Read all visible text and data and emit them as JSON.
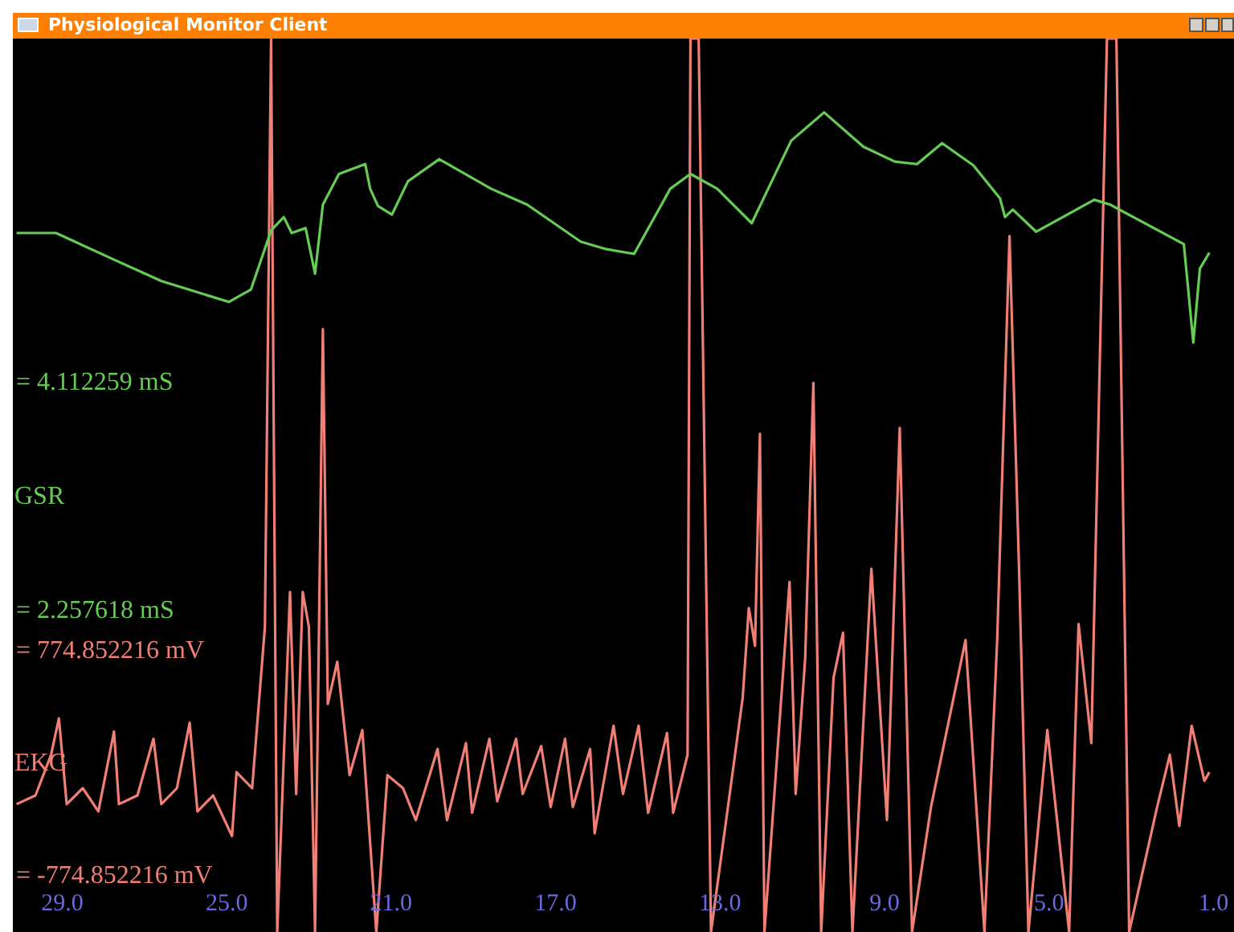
{
  "chart_data": {
    "type": "line",
    "title": "Physiological Monitor Client",
    "xlim": [
      30.2,
      0.5
    ],
    "xticks": [
      {
        "value": 29,
        "label": "29.0"
      },
      {
        "value": 25,
        "label": "25.0"
      },
      {
        "value": 21,
        "label": "21.0"
      },
      {
        "value": 17,
        "label": "17.0"
      },
      {
        "value": 13,
        "label": "13.0"
      },
      {
        "value": 9,
        "label": "9.0"
      },
      {
        "value": 5,
        "label": "5.0"
      },
      {
        "value": 1,
        "label": "1.0"
      }
    ],
    "ylim": [
      -0.35,
      6.91
    ],
    "yticks": [
      {
        "value": 2.257618,
        "label": "= 2.257618 mS"
      },
      {
        "value": 4.112259,
        "label": "= 4.112259 mS"
      }
    ],
    "y2lim": [
      -1160,
      4990
    ],
    "y2ticks": [
      {
        "value": -774.852216,
        "label": "= -774.852216 mV"
      },
      {
        "value": 774.852216,
        "label": "= 774.852216 mV"
      }
    ],
    "grid": false,
    "legend": false,
    "marker": "none",
    "series": [
      {
        "name": "GSR",
        "color": "#66cc55",
        "x": [
          30.11,
          29.15,
          27.85,
          26.59,
          24.95,
          24.41,
          23.92,
          23.61,
          23.42,
          23.08,
          22.85,
          22.66,
          22.27,
          21.63,
          21.51,
          21.32,
          20.98,
          20.59,
          19.83,
          18.57,
          17.69,
          16.39,
          15.78,
          15.09,
          14.21,
          13.72,
          13.07,
          12.23,
          11.27,
          10.47,
          9.51,
          8.75,
          8.21,
          7.6,
          6.84,
          6.19,
          6.07,
          5.88,
          5.31,
          3.9,
          3.51,
          1.72,
          1.49,
          1.33,
          1.1
        ],
        "values": [
          5.33,
          5.33,
          5.13,
          4.94,
          4.77,
          4.87,
          5.35,
          5.46,
          5.33,
          5.37,
          5.0,
          5.56,
          5.81,
          5.89,
          5.69,
          5.55,
          5.48,
          5.75,
          5.93,
          5.69,
          5.56,
          5.26,
          5.2,
          5.16,
          5.69,
          5.81,
          5.69,
          5.41,
          6.08,
          6.31,
          6.03,
          5.91,
          5.89,
          6.06,
          5.88,
          5.61,
          5.46,
          5.52,
          5.34,
          5.6,
          5.56,
          5.24,
          4.44,
          5.04,
          5.17
        ]
      },
      {
        "name": "EKG",
        "color": "#f07f75",
        "axis": "y2",
        "x": [
          30.11,
          29.65,
          29.27,
          29.08,
          28.89,
          28.5,
          28.12,
          27.74,
          27.62,
          27.17,
          26.78,
          26.59,
          26.21,
          25.9,
          25.71,
          25.33,
          24.87,
          24.76,
          24.38,
          24.07,
          23.92,
          23.77,
          23.46,
          23.31,
          23.15,
          23.0,
          22.85,
          22.66,
          22.54,
          22.31,
          22.01,
          21.7,
          21.36,
          21.09,
          20.71,
          20.4,
          19.87,
          19.64,
          19.18,
          19.03,
          18.61,
          18.42,
          17.96,
          17.8,
          17.35,
          17.12,
          16.77,
          16.58,
          16.16,
          16.05,
          15.59,
          15.36,
          14.98,
          14.75,
          14.29,
          14.14,
          13.79,
          13.72,
          13.52,
          13.22,
          12.45,
          12.3,
          12.15,
          12.03,
          11.92,
          11.61,
          11.31,
          11.16,
          10.93,
          10.73,
          10.54,
          10.24,
          10.01,
          9.78,
          9.32,
          8.94,
          8.63,
          8.33,
          7.87,
          7.03,
          6.57,
          6.26,
          5.96,
          5.73,
          5.5,
          5.04,
          4.51,
          4.28,
          3.97,
          3.59,
          3.36,
          3.05,
          2.37,
          2.06,
          1.83,
          1.53,
          1.22,
          1.1
        ],
        "values": [
          -280,
          -220,
          60,
          310,
          -280,
          -170,
          -330,
          220,
          -280,
          -220,
          170,
          -280,
          -170,
          280,
          -330,
          -220,
          -500,
          -60,
          -170,
          940,
          4990,
          -1160,
          1180,
          -210,
          1180,
          940,
          -1160,
          2990,
          410,
          700,
          -80,
          230,
          -1160,
          -80,
          -170,
          -390,
          100,
          -390,
          140,
          -340,
          170,
          -260,
          170,
          -210,
          120,
          -300,
          170,
          -300,
          100,
          -480,
          260,
          -210,
          260,
          -340,
          210,
          -340,
          60,
          4990,
          4990,
          -1160,
          450,
          1070,
          810,
          2270,
          -1160,
          60,
          1250,
          -210,
          720,
          2620,
          -1160,
          590,
          900,
          -1160,
          1340,
          -390,
          2310,
          -1160,
          -300,
          850,
          -1160,
          850,
          3630,
          1360,
          -1160,
          230,
          -1160,
          960,
          140,
          4990,
          4990,
          -1160,
          -300,
          60,
          -430,
          260,
          -120,
          -60
        ]
      }
    ]
  }
}
